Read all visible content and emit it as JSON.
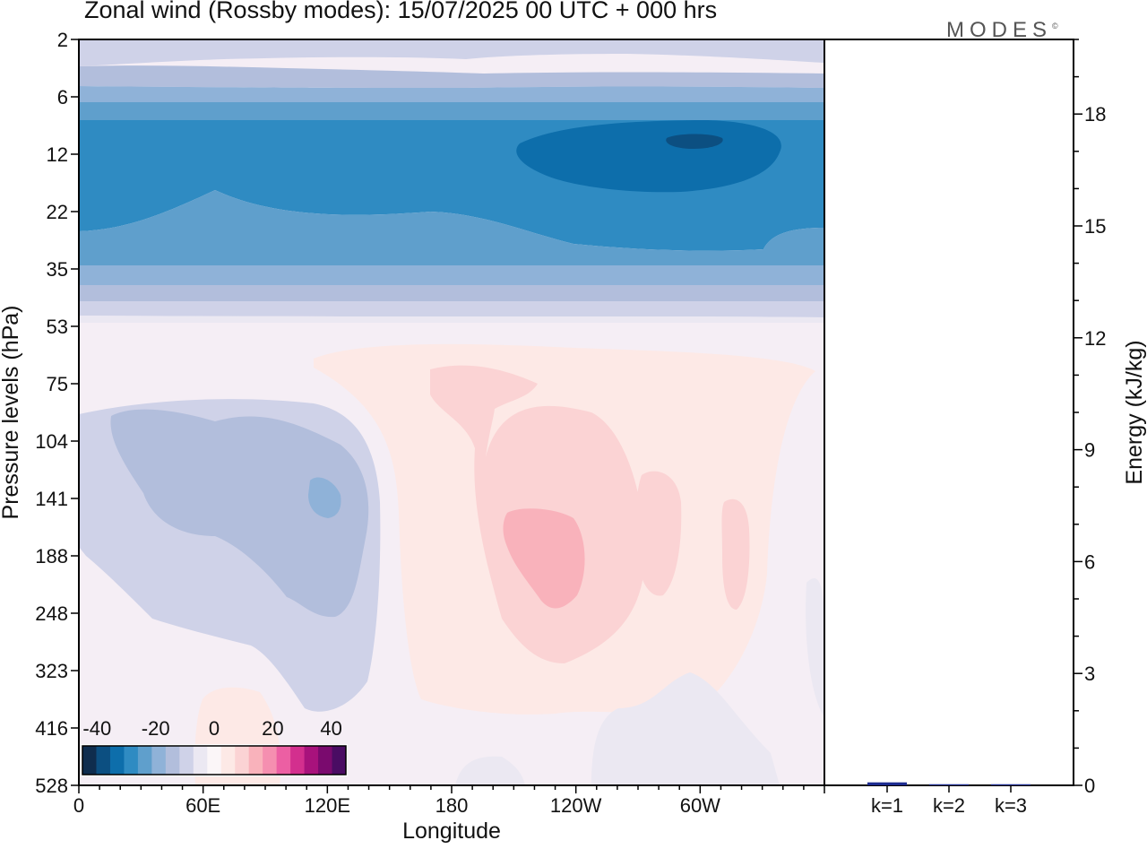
{
  "title": "Zonal wind (Rossby modes):  15/07/2025  00 UTC  + 000 hrs",
  "logo": "MODES",
  "logo_mark": "©",
  "chart_data": [
    {
      "type": "heatmap",
      "variable": "Zonal wind (Rossby modes)",
      "xlabel": "Longitude",
      "ylabel": "Pressure levels (hPa)",
      "x_ticks": [
        "0",
        "60E",
        "120E",
        "180",
        "120W",
        "60W"
      ],
      "x_tick_degrees": [
        0,
        60,
        120,
        180,
        240,
        300
      ],
      "xlim_degrees": [
        0,
        360
      ],
      "y_ticks": [
        "2",
        "6",
        "12",
        "22",
        "35",
        "53",
        "75",
        "104",
        "141",
        "188",
        "248",
        "323",
        "416",
        "528"
      ],
      "y_scale": "pressure levels (reversed, top = 2 hPa)",
      "colorbar": {
        "tick_labels": [
          "-40",
          "-20",
          "0",
          "20",
          "40"
        ],
        "min": -45,
        "max": 45,
        "step": 5,
        "colors": [
          "#0f2d4e",
          "#0c4f81",
          "#0d6eab",
          "#2f8bc2",
          "#5f9fcc",
          "#8fb2d8",
          "#b2bedc",
          "#cfd2e8",
          "#ebe8f2",
          "#fbf6f8",
          "#fde9e6",
          "#fbd3d4",
          "#f9b2bb",
          "#f58fb0",
          "#ec5fa3",
          "#d32f8e",
          "#a8127c",
          "#7a0a6e",
          "#4a0c63"
        ]
      },
      "regions": [
        {
          "level_range": [
            "2",
            "6"
          ],
          "wind": "weak easterly (about -5 to -15)"
        },
        {
          "level_range": [
            "6",
            "35"
          ],
          "wind": "easterly jet, core about -25 to -35 near 10-14 hPa, 60W"
        },
        {
          "level_range": [
            "35",
            "53"
          ],
          "wind": "weak easterly (about -5 to -15)"
        },
        {
          "level_range": [
            "75",
            "416"
          ],
          "longitude_range": [
            "150E",
            "60W"
          ],
          "wind": "westerly, max about 15-20 near 141-188 hPa, 120W"
        },
        {
          "level_range": [
            "104",
            "248"
          ],
          "longitude_range": [
            "20E",
            "120E"
          ],
          "wind": "easterly about -10 to -15"
        }
      ]
    },
    {
      "type": "bar",
      "ylabel": "Energy (kJ/kg)",
      "categories": [
        "k=1",
        "k=2",
        "k=3"
      ],
      "values": [
        0.08,
        0.03,
        0.03
      ],
      "ylim": [
        0,
        20
      ],
      "y_ticks": [
        "0",
        "3",
        "6",
        "9",
        "12",
        "15",
        "18"
      ],
      "bar_color": "#1c2b8f"
    }
  ]
}
